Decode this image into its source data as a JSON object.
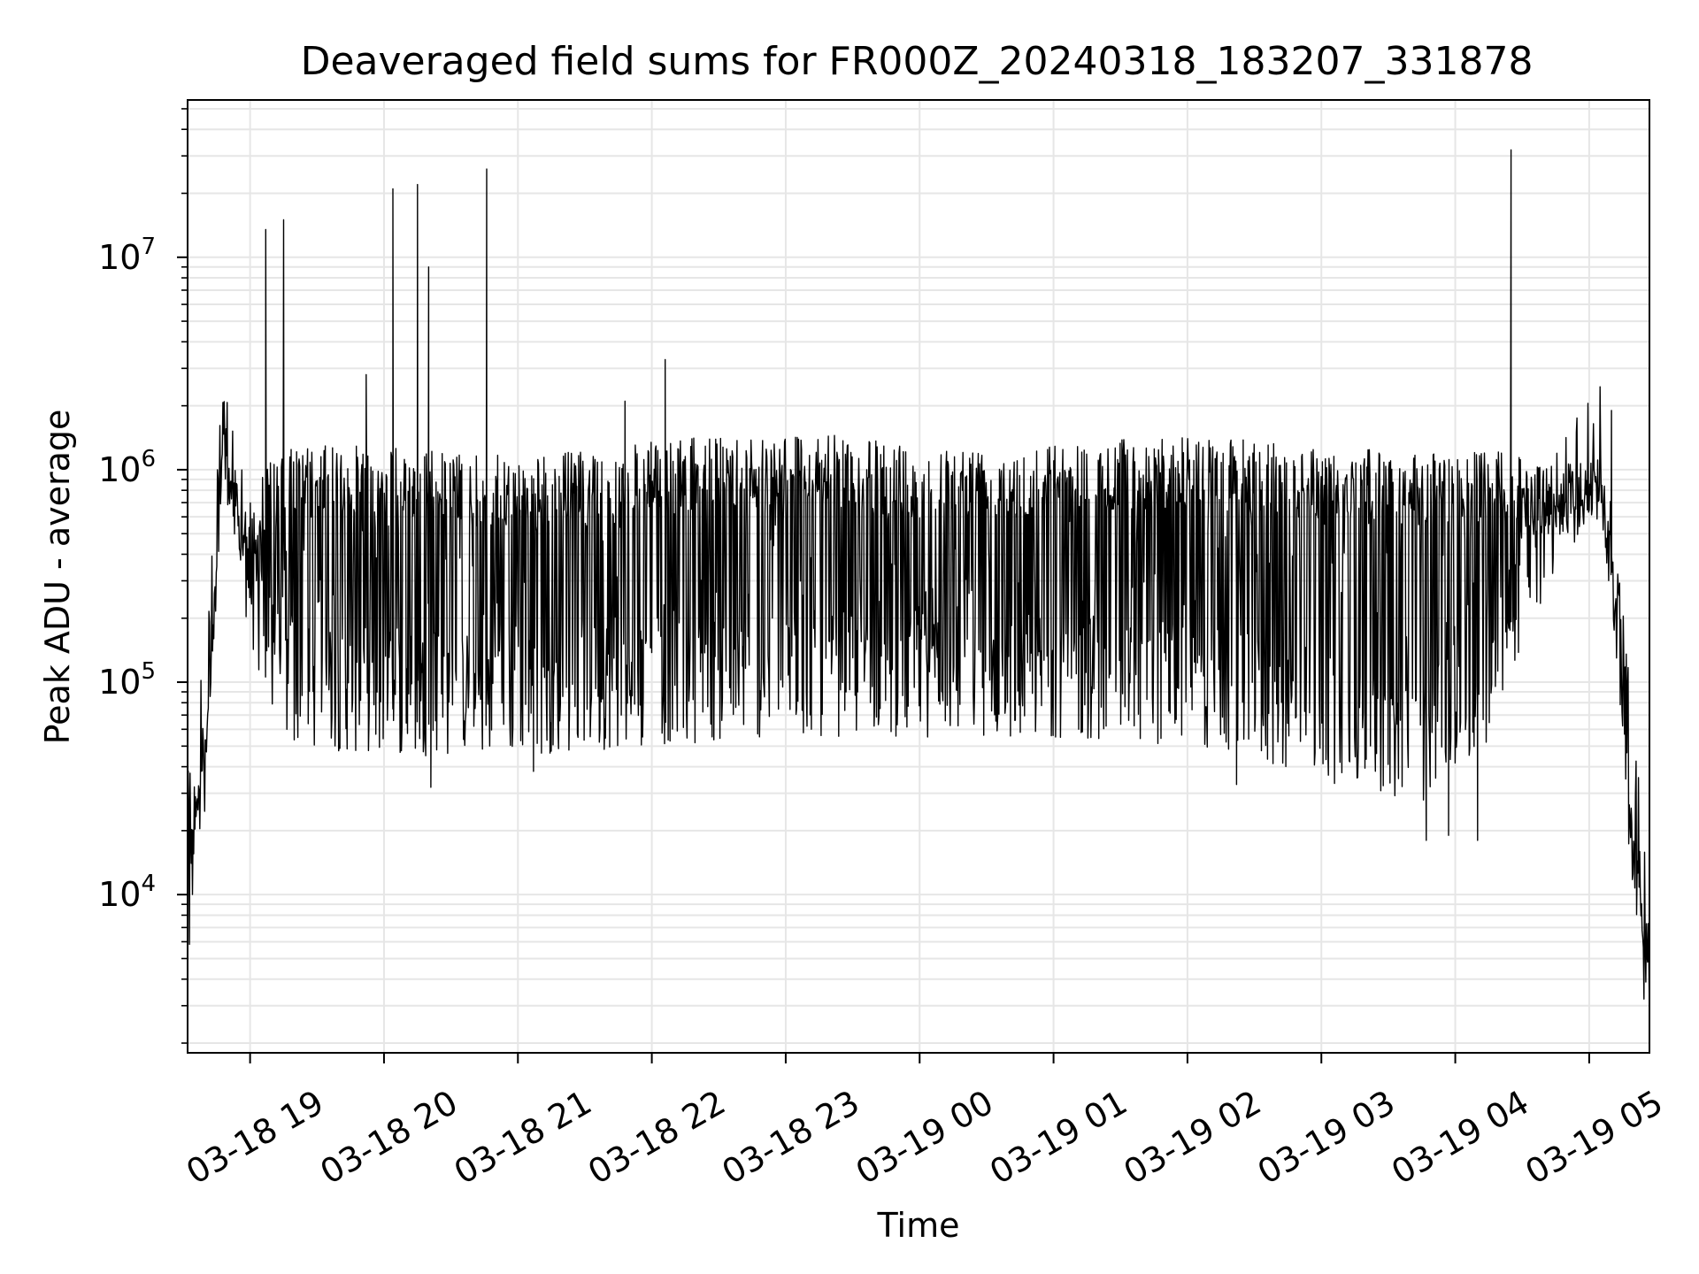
{
  "chart_data": {
    "type": "line",
    "title": "Deaveraged field sums for FR000Z_20240318_183207_331878",
    "xlabel": "Time",
    "ylabel": "Peak ADU - average",
    "y_scale": "log",
    "ylim": [
      1800,
      55000000
    ],
    "xlim": [
      "2024-03-18 18:32",
      "2024-03-19 05:27"
    ],
    "grid": true,
    "grid_minor_y": true,
    "line_color": "#000000",
    "grid_color": "#e6e6e6",
    "x_ticks": [
      {
        "value": "2024-03-18 19:00",
        "label": "03-18 19"
      },
      {
        "value": "2024-03-18 20:00",
        "label": "03-18 20"
      },
      {
        "value": "2024-03-18 21:00",
        "label": "03-18 21"
      },
      {
        "value": "2024-03-18 22:00",
        "label": "03-18 22"
      },
      {
        "value": "2024-03-18 23:00",
        "label": "03-18 23"
      },
      {
        "value": "2024-03-19 00:00",
        "label": "03-19 00"
      },
      {
        "value": "2024-03-19 01:00",
        "label": "03-19 01"
      },
      {
        "value": "2024-03-19 02:00",
        "label": "03-19 02"
      },
      {
        "value": "2024-03-19 03:00",
        "label": "03-19 03"
      },
      {
        "value": "2024-03-19 04:00",
        "label": "03-19 04"
      },
      {
        "value": "2024-03-19 05:00",
        "label": "03-19 05"
      }
    ],
    "y_ticks": [
      {
        "value": 10000,
        "base": "10",
        "exp": "4"
      },
      {
        "value": 100000,
        "base": "10",
        "exp": "5"
      },
      {
        "value": 1000000,
        "base": "10",
        "exp": "6"
      },
      {
        "value": 10000000,
        "base": "10",
        "exp": "7"
      }
    ],
    "series": [
      {
        "envelope": [
          {
            "x": "2024-03-18 18:32",
            "high": 9000,
            "low": 9000
          },
          {
            "x": "2024-03-18 18:36",
            "high": 35000,
            "low": 25000
          },
          {
            "x": "2024-03-18 18:40",
            "high": 55000,
            "low": 40000
          },
          {
            "x": "2024-03-18 18:44",
            "high": 300000,
            "low": 150000
          },
          {
            "x": "2024-03-18 18:47",
            "high": 1600000,
            "low": 700000
          },
          {
            "x": "2024-03-18 18:52",
            "high": 1100000,
            "low": 500000
          },
          {
            "x": "2024-03-18 18:58",
            "high": 700000,
            "low": 200000
          },
          {
            "x": "2024-03-18 19:05",
            "high": 1000000,
            "low": 90000
          },
          {
            "x": "2024-03-18 19:15",
            "high": 1300000,
            "low": 50000
          },
          {
            "x": "2024-03-18 20:00",
            "high": 1300000,
            "low": 45000
          },
          {
            "x": "2024-03-18 21:00",
            "high": 1150000,
            "low": 45000
          },
          {
            "x": "2024-03-18 22:00",
            "high": 1350000,
            "low": 50000
          },
          {
            "x": "2024-03-18 23:00",
            "high": 1550000,
            "low": 55000
          },
          {
            "x": "2024-03-19 00:00",
            "high": 1300000,
            "low": 55000
          },
          {
            "x": "2024-03-19 01:00",
            "high": 1350000,
            "low": 55000
          },
          {
            "x": "2024-03-19 02:00",
            "high": 1450000,
            "low": 50000
          },
          {
            "x": "2024-03-19 03:00",
            "high": 1300000,
            "low": 35000
          },
          {
            "x": "2024-03-19 03:40",
            "high": 1200000,
            "low": 25000
          },
          {
            "x": "2024-03-19 04:10",
            "high": 1250000,
            "low": 40000
          },
          {
            "x": "2024-03-19 04:30",
            "high": 1200000,
            "low": 150000
          },
          {
            "x": "2024-03-19 04:50",
            "high": 1000000,
            "low": 400000
          },
          {
            "x": "2024-03-19 05:05",
            "high": 1200000,
            "low": 700000
          },
          {
            "x": "2024-03-19 05:12",
            "high": 300000,
            "low": 150000
          },
          {
            "x": "2024-03-19 05:18",
            "high": 35000,
            "low": 25000
          },
          {
            "x": "2024-03-19 05:24",
            "high": 8000,
            "low": 6000
          },
          {
            "x": "2024-03-19 05:27",
            "high": 4000,
            "low": 4000
          }
        ],
        "spikes": [
          {
            "x": "2024-03-18 19:07",
            "y": 13500000
          },
          {
            "x": "2024-03-18 19:15",
            "y": 15000000
          },
          {
            "x": "2024-03-18 19:52",
            "y": 2800000
          },
          {
            "x": "2024-03-18 20:04",
            "y": 21000000
          },
          {
            "x": "2024-03-18 20:15",
            "y": 22000000
          },
          {
            "x": "2024-03-18 20:20",
            "y": 9000000
          },
          {
            "x": "2024-03-18 20:46",
            "y": 26000000
          },
          {
            "x": "2024-03-18 21:48",
            "y": 2100000
          },
          {
            "x": "2024-03-18 22:06",
            "y": 3300000
          },
          {
            "x": "2024-03-19 04:25",
            "y": 32000000
          },
          {
            "x": "2024-03-19 05:10",
            "y": 1900000
          }
        ],
        "dips": [
          {
            "x": "2024-03-18 20:21",
            "y": 32000
          },
          {
            "x": "2024-03-18 21:07",
            "y": 38000
          },
          {
            "x": "2024-03-19 02:22",
            "y": 33000
          },
          {
            "x": "2024-03-19 03:47",
            "y": 18000
          },
          {
            "x": "2024-03-19 03:57",
            "y": 19000
          },
          {
            "x": "2024-03-19 04:10",
            "y": 18000
          }
        ]
      }
    ]
  }
}
